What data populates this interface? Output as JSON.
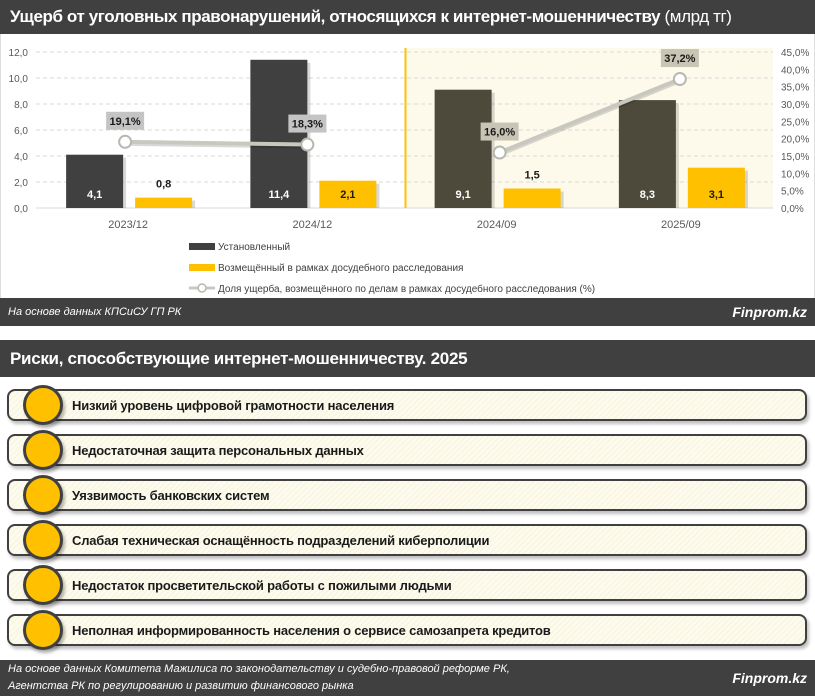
{
  "header": {
    "title": "Ущерб от  уголовных правонарушений, относящихся к интернет-мошенничеству",
    "unit": " (млрд тг)"
  },
  "chart_data": {
    "type": "bar",
    "title": "Ущерб от уголовных правонарушений, относящихся к интернет-мошенничеству (млрд тг)",
    "categories": [
      "2023/12",
      "2024/12",
      "2024/09",
      "2025/09"
    ],
    "series": [
      {
        "name": "Установленный",
        "type": "bar",
        "color": "#404040",
        "values": [
          4.1,
          11.4,
          9.1,
          8.3
        ],
        "labels": [
          "4,1",
          "11,4",
          "9,1",
          "8,3"
        ]
      },
      {
        "name": "Возмещённый в рамках досудебного расследования",
        "type": "bar",
        "color": "#ffc000",
        "values": [
          0.8,
          2.1,
          1.5,
          3.1
        ],
        "labels": [
          "0,8",
          "2,1",
          "1,5",
          "3,1"
        ]
      },
      {
        "name": "Доля ущерба, возмещённого по делам в рамках досудебного расследования (%)",
        "type": "line",
        "axis": "right",
        "color": "#c8c8c0",
        "values": [
          19.1,
          18.3,
          16.0,
          37.2
        ],
        "labels": [
          "19,1%",
          "18,3%",
          "16,0%",
          "37,2%"
        ]
      }
    ],
    "y_left": {
      "ylim": [
        0,
        12
      ],
      "ticks": [
        "0,0",
        "2,0",
        "4,0",
        "6,0",
        "8,0",
        "10,0",
        "12,0"
      ]
    },
    "y_right": {
      "ylim": [
        0,
        45
      ],
      "ticks": [
        "0,0%",
        "5,0%",
        "10,0%",
        "15,0%",
        "20,0%",
        "25,0%",
        "30,0%",
        "35,0%",
        "40,0%",
        "45,0%"
      ]
    },
    "grid": true,
    "legend_position": "bottom",
    "highlight_region": {
      "from": "2024/09",
      "to": "2025/09",
      "color": "#fdfaeb",
      "divider_color": "#ffc000"
    }
  },
  "source1": {
    "text": "На основе данных КПСиСУ ГП РК",
    "brand": "Finprom.kz"
  },
  "risks": {
    "title": "Риски, способствующие интернет-мошенничеству. 2025",
    "items": [
      "Низкий уровень цифровой грамотности населения",
      "Недостаточная защита персональных данных",
      "Уязвимость банковских систем",
      "Слабая техническая оснащённость подразделений киберполиции",
      "Недостаток просветительской работы с пожилыми людьми",
      "Неполная информированность населения о сервисе самозапрета кредитов"
    ]
  },
  "source2": {
    "line1": "На основе данных Комитета Мажилиса по законодательству и судебно-правовой реформе РК,",
    "line2": "Агентства РК по регулированию и развитию финансового рынка",
    "brand": "Finprom.kz"
  }
}
